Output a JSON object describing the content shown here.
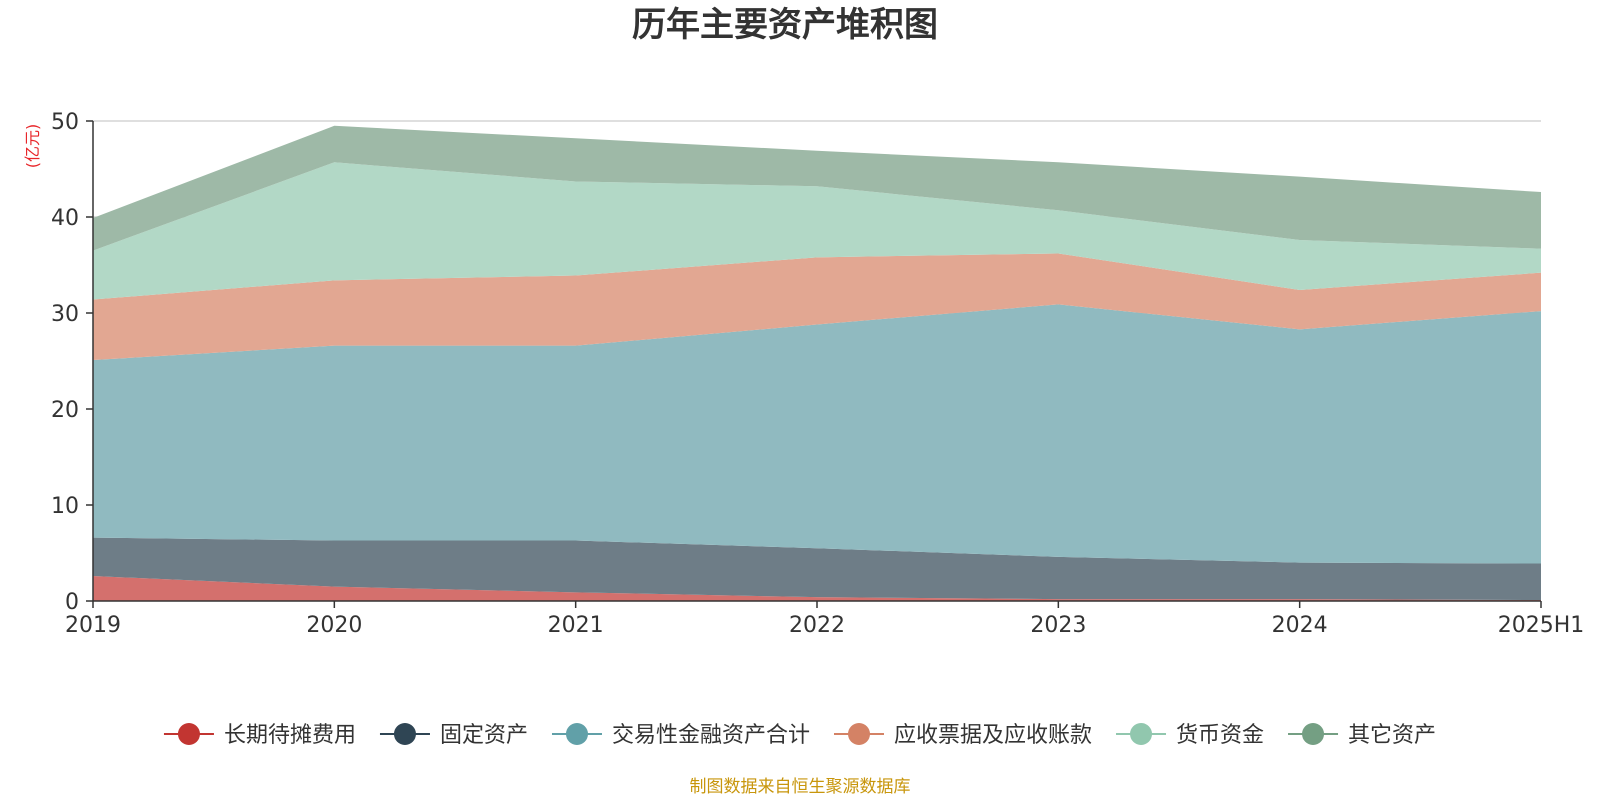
{
  "chart_data": {
    "type": "area",
    "stacked": true,
    "title": "历年主要资产堆积图",
    "unit_label": "(亿元)",
    "categories": [
      "2019",
      "2020",
      "2021",
      "2022",
      "2023",
      "2024",
      "2025H1"
    ],
    "ylim": [
      0,
      50
    ],
    "yticks": [
      "0",
      "10",
      "20",
      "30",
      "40",
      "50"
    ],
    "grid": true,
    "legend_position": "bottom",
    "series": [
      {
        "name": "长期待摊费用",
        "color": "#c23531",
        "fill": "#d4706d",
        "values": [
          2.6,
          1.5,
          0.9,
          0.4,
          0.2,
          0.2,
          0.1
        ]
      },
      {
        "name": "固定资产",
        "color": "#2f4554",
        "fill": "#6e7d87",
        "values": [
          4.0,
          4.8,
          5.4,
          5.1,
          4.4,
          3.8,
          3.8
        ]
      },
      {
        "name": "交易性金融资产合计",
        "color": "#61a0a8",
        "fill": "#90bac0",
        "values": [
          18.5,
          20.3,
          20.3,
          23.3,
          26.3,
          24.3,
          26.3
        ]
      },
      {
        "name": "应收票据及应收账款",
        "color": "#d48265",
        "fill": "#e2a792",
        "values": [
          6.3,
          6.8,
          7.3,
          7.0,
          5.3,
          4.1,
          4.0
        ]
      },
      {
        "name": "货币资金",
        "color": "#91c7ae",
        "fill": "#b2d8c6",
        "values": [
          5.1,
          12.3,
          9.8,
          7.4,
          4.5,
          5.2,
          2.5
        ]
      },
      {
        "name": "其它资产",
        "color": "#749f83",
        "fill": "#9eb9a7",
        "values": [
          3.4,
          3.8,
          4.5,
          3.7,
          5.0,
          6.6,
          5.9
        ]
      }
    ]
  },
  "source_note": "制图数据来自恒生聚源数据库",
  "colors": {
    "unit_label": "#e8262a",
    "source_note": "#c8960c",
    "axis": "#333333",
    "grid": "#cccccc"
  }
}
